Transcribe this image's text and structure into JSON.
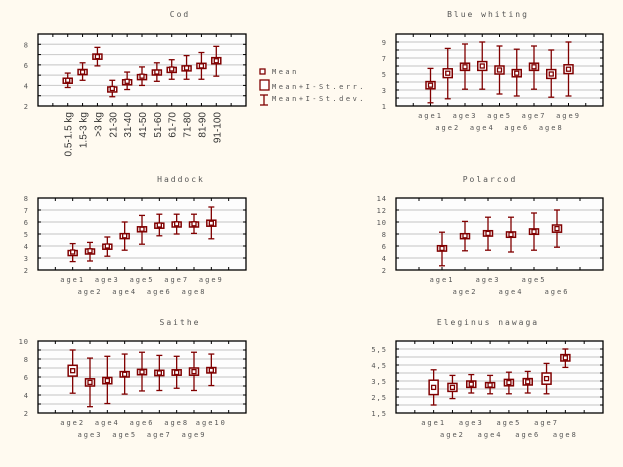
{
  "colors": {
    "background": "#fffaf0",
    "plot_background": "#fdfdfd",
    "grid": "#cfcfcf",
    "marker": "#800000"
  },
  "legend": {
    "placement": "right of Cod panel",
    "items": [
      "Mean",
      "Mean+I-St.err.",
      "Mean+I-St.dev."
    ]
  },
  "chart_data": [
    {
      "type": "errorbar",
      "title": "Cod",
      "grid": true,
      "ylim": [
        2,
        9
      ],
      "yticks": [
        2,
        4,
        6,
        8
      ],
      "ytick_labels": [
        "2",
        "4",
        "6",
        "8"
      ],
      "ygrid_step": 1,
      "categories": [
        "0.5-1.5 kg",
        "1.5-3 kg",
        ">3 kg",
        "21-30",
        "31-40",
        "41-50",
        "51-60",
        "61-70",
        "71-80",
        "81-90",
        "91-100"
      ],
      "mean": [
        4.5,
        5.3,
        6.8,
        3.7,
        4.4,
        4.9,
        5.3,
        5.6,
        5.7,
        5.9,
        6.4
      ],
      "se": [
        0.2,
        0.25,
        0.25,
        0.15,
        0.15,
        0.15,
        0.2,
        0.15,
        0.2,
        0.25,
        0.3
      ],
      "sd_low": [
        3.8,
        4.5,
        5.9,
        2.9,
        3.6,
        4.0,
        4.4,
        4.6,
        4.6,
        4.6,
        4.9
      ],
      "sd_high": [
        5.2,
        6.2,
        7.7,
        4.5,
        5.3,
        5.8,
        6.2,
        6.5,
        6.9,
        7.2,
        7.8
      ]
    },
    {
      "type": "errorbar",
      "title": "Blue whiting",
      "grid": true,
      "ylim": [
        1,
        10
      ],
      "yticks": [
        1,
        3,
        5,
        7,
        9
      ],
      "ytick_labels": [
        "1",
        "3",
        "5",
        "7",
        "9"
      ],
      "ygrid_step": 1,
      "categories": [
        "age1",
        "age2",
        "age3",
        "age4",
        "age5",
        "age6",
        "age7",
        "age8",
        "age9"
      ],
      "mean": [
        3.6,
        5.1,
        5.9,
        6.0,
        5.5,
        5.1,
        5.9,
        5.0,
        5.6
      ],
      "se": [
        0.45,
        0.55,
        0.45,
        0.55,
        0.5,
        0.45,
        0.45,
        0.55,
        0.55
      ],
      "sd_low": [
        1.4,
        1.9,
        3.1,
        3.1,
        2.5,
        2.25,
        3.1,
        2.1,
        2.25
      ],
      "sd_high": [
        5.7,
        8.2,
        8.75,
        9.0,
        8.5,
        8.1,
        8.5,
        8.0,
        9.0
      ]
    },
    {
      "type": "errorbar",
      "title": "Haddock",
      "grid": true,
      "ylim": [
        2,
        8
      ],
      "yticks": [
        2,
        3,
        4,
        5,
        6,
        7,
        8
      ],
      "ytick_labels": [
        "2",
        "3",
        "4",
        "5",
        "6",
        "7",
        "8"
      ],
      "ygrid_step": 1,
      "categories": [
        "age1",
        "age2",
        "age3",
        "age4",
        "age5",
        "age6",
        "age7",
        "age8",
        "age9"
      ],
      "mean": [
        3.5,
        3.6,
        4.0,
        4.85,
        5.4,
        5.75,
        5.85,
        5.85,
        5.9
      ],
      "se": [
        0.12,
        0.15,
        0.15,
        0.18,
        0.2,
        0.15,
        0.15,
        0.15,
        0.25
      ],
      "sd_low": [
        2.7,
        2.75,
        3.15,
        3.65,
        4.15,
        4.85,
        5.0,
        5.05,
        4.6
      ],
      "sd_high": [
        4.2,
        4.3,
        4.75,
        6.0,
        6.55,
        6.65,
        6.65,
        6.65,
        7.25
      ]
    },
    {
      "type": "errorbar",
      "title": "Polarcod",
      "grid": true,
      "ylim": [
        2,
        14
      ],
      "yticks": [
        2,
        4,
        6,
        8,
        10,
        12,
        14
      ],
      "ytick_labels": [
        "2",
        "4",
        "6",
        "8",
        "10",
        "12",
        "14"
      ],
      "ygrid_step": 2,
      "categories": [
        "age1",
        "age2",
        "age3",
        "age4",
        "age5",
        "age6"
      ],
      "mean": [
        5.6,
        7.7,
        8.1,
        7.9,
        8.4,
        8.9
      ],
      "se": [
        0.45,
        0.35,
        0.45,
        0.45,
        0.45,
        0.6
      ],
      "sd_low": [
        2.7,
        5.2,
        5.3,
        5.0,
        5.3,
        5.8
      ],
      "sd_high": [
        8.3,
        10.1,
        10.8,
        10.8,
        11.5,
        12.0
      ]
    },
    {
      "type": "errorbar",
      "title": "Saithe",
      "grid": true,
      "ylim": [
        2,
        10
      ],
      "yticks": [
        2,
        4,
        6,
        8,
        10
      ],
      "ytick_labels": [
        "2",
        "4",
        "6",
        "8",
        "10"
      ],
      "ygrid_step": 1,
      "categories": [
        "age2",
        "age3",
        "age4",
        "age5",
        "age6",
        "age7",
        "age8",
        "age9",
        "age10"
      ],
      "mean": [
        6.7,
        5.4,
        5.6,
        6.3,
        6.55,
        6.45,
        6.5,
        6.6,
        6.75
      ],
      "se": [
        0.6,
        0.4,
        0.35,
        0.3,
        0.3,
        0.3,
        0.3,
        0.4,
        0.3
      ],
      "sd_low": [
        4.2,
        2.7,
        3.05,
        4.1,
        4.45,
        4.5,
        4.75,
        4.5,
        5.05
      ],
      "sd_high": [
        9.0,
        8.1,
        8.3,
        8.55,
        8.75,
        8.4,
        8.3,
        8.75,
        8.55
      ]
    },
    {
      "type": "errorbar",
      "title": "Eleginus nawaga",
      "grid": true,
      "ylim": [
        1.5,
        6
      ],
      "yticks": [
        1.5,
        2.5,
        3.5,
        4.5,
        5.5
      ],
      "ytick_labels": [
        "1,5",
        "2,5",
        "3,5",
        "4,5",
        "5,5"
      ],
      "ygrid_step": 0.5,
      "categories": [
        "age1",
        "age2",
        "age3",
        "age4",
        "age5",
        "age6",
        "age7",
        "age8"
      ],
      "mean": [
        3.1,
        3.1,
        3.3,
        3.25,
        3.4,
        3.45,
        3.65,
        4.95
      ],
      "se": [
        0.45,
        0.25,
        0.2,
        0.15,
        0.2,
        0.2,
        0.35,
        0.2
      ],
      "sd_low": [
        2.0,
        2.4,
        2.75,
        2.7,
        2.7,
        2.75,
        2.7,
        4.35
      ],
      "sd_high": [
        4.2,
        3.85,
        3.9,
        3.85,
        4.05,
        4.1,
        4.6,
        5.5
      ]
    }
  ]
}
